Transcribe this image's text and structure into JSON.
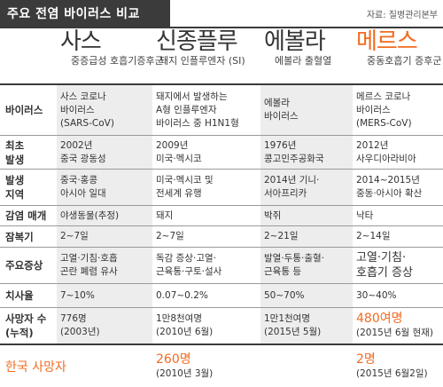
{
  "title": "주요 전염 바이러스 비교",
  "source": "자료: 질병관리본부",
  "columns": [
    {
      "name": "사스",
      "sub": "중증급성\n호흡기증후군"
    },
    {
      "name": "신종플루",
      "sub": "돼지 인플루엔자 (SI)"
    },
    {
      "name": "에볼라",
      "sub": "에볼라\n출혈열"
    },
    {
      "name": "메르스",
      "sub": "중동호흡기\n증후군"
    }
  ],
  "rows": [
    {
      "label": "바이러스",
      "cells": [
        "사스 코로나\n바이러스\n(SARS-CoV)",
        "돼지에서 발생하는\nA형 인플루엔자\n바이러스 중 H1N1형",
        "에볼라\n바이러스",
        "메르스 코로나\n바이러스\n(MERS-CoV)"
      ]
    },
    {
      "label": "최초\n발생",
      "cells": [
        "2002년\n중국 광동성",
        "2009년\n미국·멕시코",
        "1976년\n콩고민주공화국",
        "2012년\n사우디아라비아"
      ]
    },
    {
      "label": "발생\n지역",
      "cells": [
        "중국·홍콩\n아시아 일대",
        "미국·멕시코 및\n전세계 유행",
        "2014년 기니·\n서아프리카",
        "2014~2015년\n중동·아시아 확산"
      ]
    },
    {
      "label": "감염 매개",
      "cells": [
        "야생동물(추정)",
        "돼지",
        "박쥐",
        "낙타"
      ]
    },
    {
      "label": "잠복기",
      "cells": [
        "2~7일",
        "2~7일",
        "2~21일",
        "2~14일"
      ]
    },
    {
      "label": "주요증상",
      "cells": [
        "고열·기침·호흡\n곤란 폐렴 유사",
        "독감 증상·고열·\n근육통·구토·설사",
        "발열·두통·출혈·\n근육통 등",
        "고열·기침·\n호흡기 증상"
      ]
    },
    {
      "label": "치사율",
      "cells": [
        "7~10%",
        "0.07~0.2%",
        "50~70%",
        "30~40%"
      ]
    },
    {
      "label": "사망자 수\n(누적)",
      "cells": [
        "776명\n(2003년)",
        "1만8천여명\n(2010년 6월)",
        "1만1천여명\n(2015년 5월)",
        "480여명\n(2015년 6월 현재)"
      ]
    }
  ],
  "korea": {
    "label": "한국 사망자",
    "flu": "260명",
    "flu_note": "(2010년 3월)",
    "mers": "2명",
    "mers_note": "(2015년 6월2일)"
  },
  "colors": {
    "accent": "#f26b21",
    "dark": "#3b3b3b",
    "shade": "#ededed"
  }
}
